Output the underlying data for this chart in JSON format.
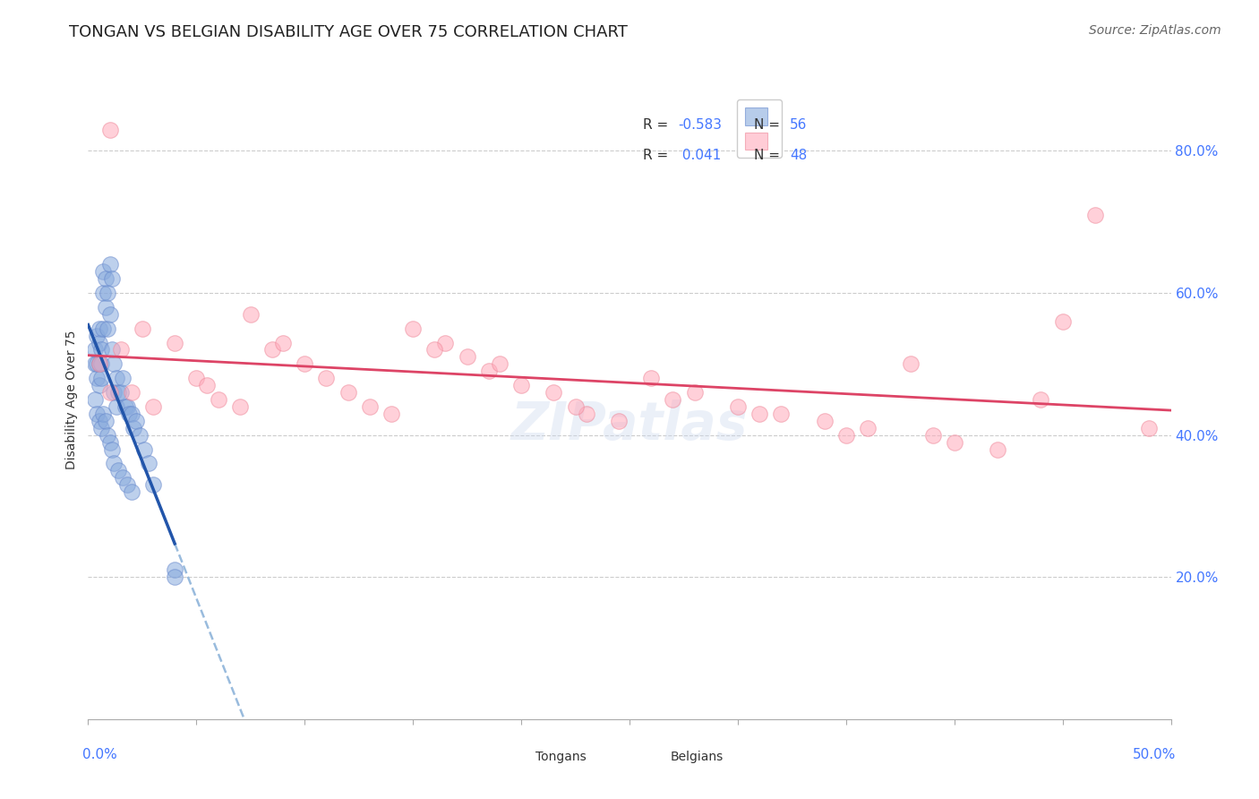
{
  "title": "TONGAN VS BELGIAN DISABILITY AGE OVER 75 CORRELATION CHART",
  "source": "Source: ZipAtlas.com",
  "ylabel": "Disability Age Over 75",
  "legend_r_tongan": "-0.583",
  "legend_n_tongan": "56",
  "legend_r_belgian": "0.041",
  "legend_n_belgian": "48",
  "tongan_color": "#88aadd",
  "tongan_edge": "#6688cc",
  "belgian_color": "#ffaabb",
  "belgian_edge": "#ee8899",
  "tongan_line_color": "#2255aa",
  "tongan_line_dash_color": "#99bbdd",
  "belgian_line_color": "#dd4466",
  "grid_color": "#cccccc",
  "background_color": "#ffffff",
  "x_min": 0.0,
  "x_max": 0.5,
  "y_min": 0.0,
  "y_max": 0.9,
  "right_yticks": [
    0.2,
    0.4,
    0.6,
    0.8
  ],
  "right_ytick_labels": [
    "20.0%",
    "40.0%",
    "60.0%",
    "80.0%"
  ],
  "xtick_left": "0.0%",
  "xtick_right": "50.0%",
  "legend_label_tongan": "Tongans",
  "legend_label_belgian": "Belgians",
  "title_fontsize": 13,
  "axis_label_fontsize": 10,
  "tick_fontsize": 11,
  "legend_fontsize": 11,
  "source_fontsize": 10,
  "watermark": "ZIPatlas",
  "tongan_x": [
    0.003,
    0.003,
    0.004,
    0.004,
    0.004,
    0.005,
    0.005,
    0.005,
    0.005,
    0.006,
    0.006,
    0.006,
    0.007,
    0.007,
    0.007,
    0.008,
    0.008,
    0.009,
    0.009,
    0.01,
    0.01,
    0.011,
    0.011,
    0.012,
    0.012,
    0.013,
    0.013,
    0.014,
    0.015,
    0.016,
    0.017,
    0.018,
    0.019,
    0.02,
    0.021,
    0.022,
    0.024,
    0.026,
    0.028,
    0.03,
    0.003,
    0.004,
    0.005,
    0.006,
    0.007,
    0.008,
    0.009,
    0.01,
    0.011,
    0.012,
    0.014,
    0.016,
    0.018,
    0.02,
    0.04,
    0.04
  ],
  "tongan_y": [
    0.52,
    0.5,
    0.54,
    0.5,
    0.48,
    0.55,
    0.53,
    0.5,
    0.47,
    0.52,
    0.5,
    0.48,
    0.63,
    0.6,
    0.55,
    0.62,
    0.58,
    0.6,
    0.55,
    0.64,
    0.57,
    0.62,
    0.52,
    0.5,
    0.46,
    0.48,
    0.44,
    0.46,
    0.46,
    0.48,
    0.44,
    0.44,
    0.43,
    0.43,
    0.41,
    0.42,
    0.4,
    0.38,
    0.36,
    0.33,
    0.45,
    0.43,
    0.42,
    0.41,
    0.43,
    0.42,
    0.4,
    0.39,
    0.38,
    0.36,
    0.35,
    0.34,
    0.33,
    0.32,
    0.21,
    0.2
  ],
  "belgian_x": [
    0.005,
    0.01,
    0.015,
    0.02,
    0.025,
    0.03,
    0.04,
    0.05,
    0.06,
    0.07,
    0.075,
    0.085,
    0.1,
    0.11,
    0.12,
    0.13,
    0.14,
    0.15,
    0.165,
    0.175,
    0.185,
    0.2,
    0.215,
    0.23,
    0.245,
    0.26,
    0.28,
    0.3,
    0.32,
    0.34,
    0.36,
    0.38,
    0.4,
    0.42,
    0.45,
    0.01,
    0.055,
    0.09,
    0.16,
    0.19,
    0.225,
    0.27,
    0.31,
    0.35,
    0.39,
    0.44,
    0.465,
    0.49
  ],
  "belgian_y": [
    0.5,
    0.83,
    0.52,
    0.46,
    0.55,
    0.44,
    0.53,
    0.48,
    0.45,
    0.44,
    0.57,
    0.52,
    0.5,
    0.48,
    0.46,
    0.44,
    0.43,
    0.55,
    0.53,
    0.51,
    0.49,
    0.47,
    0.46,
    0.43,
    0.42,
    0.48,
    0.46,
    0.44,
    0.43,
    0.42,
    0.41,
    0.5,
    0.39,
    0.38,
    0.56,
    0.46,
    0.47,
    0.53,
    0.52,
    0.5,
    0.44,
    0.45,
    0.43,
    0.4,
    0.4,
    0.45,
    0.71,
    0.41
  ]
}
